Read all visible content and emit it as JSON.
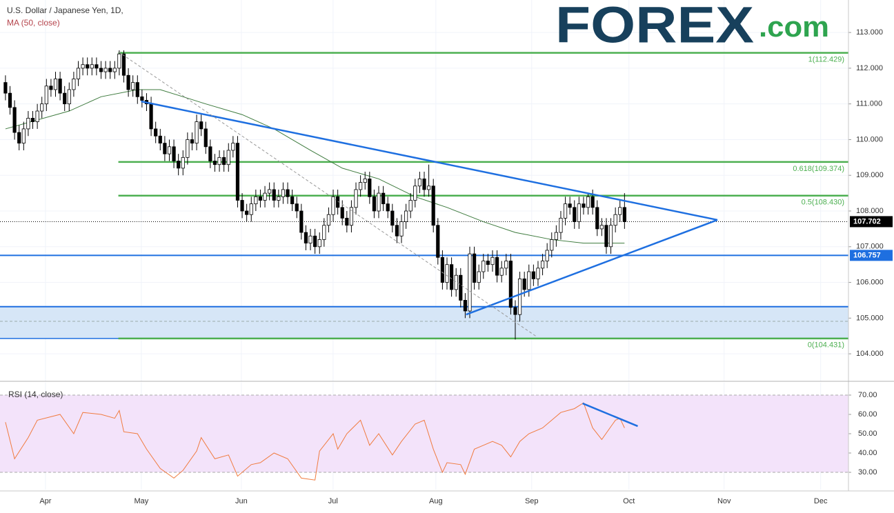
{
  "chart_data": {
    "type": "candlestick",
    "title": "U.S. Dollar / Japanese Yen, 1D,",
    "subtitle": "MA (50, close)",
    "logo": {
      "main": "FOREX",
      "suffix": ".com",
      "color": "#17405c",
      "suffix_color": "#2ea44f"
    },
    "xlim": [
      -1.2,
      185.2
    ],
    "xticks": [
      {
        "value": 8.79,
        "label": "Apr"
      },
      {
        "value": 29.85,
        "label": "May"
      },
      {
        "value": 51.82,
        "label": "Jun"
      },
      {
        "value": 71.97,
        "label": "Jul"
      },
      {
        "value": 94.55,
        "label": "Aug"
      },
      {
        "value": 115.6,
        "label": "Sep"
      },
      {
        "value": 136.97,
        "label": "Oct"
      },
      {
        "value": 157.88,
        "label": "Nov"
      },
      {
        "value": 179.09,
        "label": "Dec"
      }
    ],
    "ylim": [
      103.23,
      113.91
    ],
    "yticks": [
      {
        "value": 104,
        "label": "104.000"
      },
      {
        "value": 105,
        "label": "105.000"
      },
      {
        "value": 106,
        "label": "106.000"
      },
      {
        "value": 107,
        "label": "107.000"
      },
      {
        "value": 108,
        "label": "108.000"
      },
      {
        "value": 109,
        "label": "109.000"
      },
      {
        "value": 110,
        "label": "110.000"
      },
      {
        "value": 111,
        "label": "111.000"
      },
      {
        "value": 112,
        "label": "112.000"
      },
      {
        "value": 113,
        "label": "113.000"
      }
    ],
    "grid": true,
    "up_color": "#ffffff",
    "down_color": "#000000",
    "open": [
      111.6,
      111.3,
      110.9,
      110.2,
      109.9,
      110.3,
      110.6,
      110.5,
      110.8,
      111.0,
      111.5,
      111.4,
      111.7,
      111.3,
      111.0,
      111.4,
      111.7,
      112.0,
      112.1,
      112.0,
      112.1,
      112.0,
      111.9,
      112.0,
      111.9,
      112.0,
      112.4,
      111.8,
      111.4,
      111.6,
      111.2,
      111.1,
      111.0,
      110.3,
      110.1,
      109.9,
      109.6,
      109.8,
      109.4,
      109.2,
      109.5,
      110.0,
      109.9,
      110.5,
      110.3,
      109.8,
      109.4,
      109.3,
      109.5,
      109.3,
      109.7,
      109.9,
      108.3,
      108.0,
      107.9,
      108.2,
      108.4,
      108.3,
      108.5,
      108.6,
      108.3,
      108.4,
      108.6,
      108.4,
      108.2,
      108.0,
      107.4,
      107.1,
      107.3,
      107.0,
      107.2,
      107.6,
      107.9,
      108.4,
      108.1,
      107.8,
      107.6,
      108.1,
      108.6,
      108.8,
      108.9,
      108.4,
      108.0,
      108.5,
      108.2,
      108.0,
      107.6,
      107.3,
      107.7,
      108.0,
      108.3,
      108.7,
      108.9,
      108.6,
      108.7,
      107.6,
      106.7,
      106.0,
      106.5,
      105.8,
      106.2,
      105.5,
      105.2,
      106.8,
      106.0,
      106.3,
      106.6,
      106.5,
      106.7,
      106.2,
      106.4,
      106.6,
      105.3,
      105.1,
      106.1,
      105.8,
      106.3,
      106.1,
      106.4,
      106.6,
      106.9,
      107.2,
      107.4,
      107.8,
      108.2,
      108.1,
      107.7,
      108.2,
      108.1,
      108.4,
      108.1,
      107.5,
      107.6,
      107.0,
      107.6,
      107.9,
      108.1
    ],
    "high": [
      111.8,
      111.5,
      111.1,
      110.4,
      110.5,
      110.8,
      110.8,
      111.0,
      111.2,
      111.7,
      111.7,
      111.9,
      111.9,
      111.5,
      111.6,
      111.9,
      112.2,
      112.3,
      112.3,
      112.3,
      112.3,
      112.2,
      112.2,
      112.2,
      112.2,
      112.5,
      112.5,
      112.0,
      111.8,
      111.8,
      111.4,
      111.3,
      111.2,
      110.5,
      110.3,
      110.1,
      110.0,
      110.0,
      109.6,
      109.7,
      110.2,
      110.2,
      110.7,
      110.7,
      110.5,
      110.0,
      109.6,
      109.7,
      109.7,
      109.9,
      110.1,
      110.1,
      108.5,
      108.2,
      108.4,
      108.6,
      108.6,
      108.7,
      108.8,
      108.8,
      108.6,
      108.8,
      108.8,
      108.6,
      108.4,
      108.2,
      107.6,
      107.5,
      107.5,
      107.4,
      107.8,
      108.1,
      108.6,
      108.6,
      108.3,
      108.0,
      108.3,
      108.8,
      109.0,
      109.1,
      109.1,
      108.6,
      108.7,
      108.7,
      108.4,
      108.2,
      107.8,
      107.9,
      108.2,
      108.5,
      108.9,
      109.1,
      109.1,
      109.3,
      108.9,
      107.8,
      106.9,
      106.7,
      106.7,
      106.4,
      106.4,
      105.7,
      107.0,
      107.0,
      106.5,
      106.8,
      106.8,
      106.9,
      106.9,
      106.6,
      106.8,
      106.8,
      105.5,
      106.3,
      106.3,
      106.5,
      106.5,
      106.6,
      106.8,
      107.1,
      107.4,
      107.6,
      108.0,
      108.4,
      108.4,
      108.3,
      108.4,
      108.4,
      108.5,
      108.6,
      108.3,
      107.8,
      107.8,
      107.8,
      108.1,
      108.3,
      108.5
    ],
    "low": [
      111.1,
      110.7,
      110.0,
      109.7,
      109.7,
      110.1,
      110.3,
      110.3,
      110.6,
      110.8,
      111.2,
      111.2,
      111.1,
      110.8,
      110.8,
      111.2,
      111.5,
      111.8,
      111.8,
      111.8,
      111.8,
      111.7,
      111.7,
      111.7,
      111.7,
      111.8,
      111.6,
      111.2,
      111.2,
      111.0,
      110.9,
      110.8,
      110.1,
      109.9,
      109.7,
      109.4,
      109.4,
      109.2,
      109.0,
      109.0,
      109.3,
      109.7,
      109.7,
      110.1,
      109.6,
      109.2,
      109.1,
      109.1,
      109.1,
      109.1,
      109.5,
      108.1,
      107.8,
      107.7,
      107.7,
      108.0,
      108.1,
      108.1,
      108.3,
      108.1,
      108.1,
      108.2,
      108.2,
      108.0,
      107.8,
      107.2,
      106.9,
      106.9,
      106.8,
      106.8,
      107.0,
      107.4,
      107.7,
      107.9,
      107.6,
      107.4,
      107.4,
      107.9,
      108.4,
      108.6,
      108.2,
      107.8,
      107.8,
      108.0,
      107.8,
      107.4,
      107.1,
      107.1,
      107.5,
      107.8,
      108.1,
      108.5,
      108.4,
      108.4,
      107.4,
      106.5,
      105.8,
      105.8,
      105.6,
      105.6,
      105.3,
      105.0,
      105.0,
      105.8,
      105.8,
      106.1,
      106.3,
      106.3,
      106.0,
      106.0,
      106.2,
      105.1,
      104.4,
      104.9,
      105.6,
      105.6,
      105.9,
      105.9,
      106.2,
      106.4,
      106.7,
      107.0,
      107.2,
      107.6,
      107.9,
      107.5,
      107.5,
      107.9,
      107.9,
      107.9,
      107.3,
      107.3,
      106.8,
      106.8,
      107.4,
      107.7,
      107.5
    ],
    "close": [
      111.3,
      110.9,
      110.2,
      109.9,
      110.3,
      110.6,
      110.5,
      110.8,
      111.0,
      111.5,
      111.4,
      111.7,
      111.3,
      111.0,
      111.4,
      111.7,
      112.0,
      112.1,
      112.0,
      112.1,
      112.0,
      111.9,
      112.0,
      111.9,
      112.0,
      112.4,
      111.8,
      111.4,
      111.6,
      111.2,
      111.1,
      111.0,
      110.3,
      110.1,
      109.9,
      109.6,
      109.8,
      109.4,
      109.2,
      109.5,
      110.0,
      109.9,
      110.5,
      110.3,
      109.8,
      109.4,
      109.3,
      109.5,
      109.3,
      109.7,
      109.9,
      108.3,
      108.0,
      107.9,
      108.2,
      108.4,
      108.3,
      108.5,
      108.6,
      108.3,
      108.4,
      108.6,
      108.4,
      108.2,
      108.0,
      107.4,
      107.1,
      107.3,
      107.0,
      107.2,
      107.6,
      107.9,
      108.4,
      108.1,
      107.8,
      107.6,
      108.1,
      108.6,
      108.8,
      108.9,
      108.4,
      108.0,
      108.5,
      108.2,
      108.0,
      107.6,
      107.3,
      107.7,
      108.0,
      108.3,
      108.7,
      108.9,
      108.6,
      108.7,
      107.6,
      106.7,
      106.0,
      106.5,
      105.8,
      106.2,
      105.5,
      105.2,
      106.8,
      106.0,
      106.3,
      106.6,
      106.5,
      106.7,
      106.2,
      106.4,
      106.6,
      105.3,
      105.1,
      106.1,
      105.8,
      106.3,
      106.1,
      106.4,
      106.6,
      106.9,
      107.2,
      107.4,
      107.8,
      108.2,
      108.1,
      107.7,
      108.2,
      108.1,
      108.4,
      108.1,
      107.5,
      107.6,
      107.0,
      107.6,
      107.9,
      108.1,
      107.7
    ],
    "ma": {
      "color": "#3d7a3d",
      "x": [
        0,
        14,
        21,
        29,
        34,
        44,
        52,
        59,
        67,
        74,
        82,
        90,
        97,
        105,
        112,
        120,
        127,
        136
      ],
      "values": [
        110.3,
        110.8,
        111.2,
        111.4,
        111.4,
        111.0,
        110.7,
        110.3,
        109.7,
        109.2,
        108.9,
        108.4,
        108.1,
        107.7,
        107.4,
        107.2,
        107.1,
        107.1
      ]
    },
    "last_price": {
      "value": 107.702,
      "label": "107.702",
      "color": "#000000"
    },
    "levels": [
      {
        "value": 106.757,
        "label": "106.757",
        "color": "#1e6fe0"
      },
      {
        "value": 105.32,
        "color": "#1e6fe0"
      }
    ],
    "zone": {
      "from": 104.431,
      "to": 105.32,
      "mid": 104.91,
      "color": "#d6e6f7",
      "edge_color": "#1e6fe0"
    },
    "fib_color": "#4caf50",
    "fib": [
      {
        "value": 112.429,
        "label": "1(112.429)",
        "from_x": 24.8
      },
      {
        "value": 109.374,
        "label": "0.618(109.374)",
        "from_x": 24.8
      },
      {
        "value": 108.43,
        "label": "0.5(108.430)",
        "from_x": 24.8
      },
      {
        "value": 104.431,
        "label": "0(104.431)",
        "from_x": 24.8
      }
    ],
    "trendlines": [
      {
        "x": [
          29.8,
          156.4
        ],
        "values": [
          111.07,
          107.75
        ],
        "color": "#1e6fe0",
        "dash": false
      },
      {
        "x": [
          101.2,
          156.4
        ],
        "values": [
          105.1,
          107.75
        ],
        "color": "#1e6fe0",
        "dash": false
      },
      {
        "x": [
          24.8,
          116.7
        ],
        "values": [
          112.46,
          104.48
        ],
        "color": "#999999",
        "dash": true
      }
    ],
    "rsi": {
      "title": "RSI (14, close)",
      "color": "#f07b3f",
      "band": [
        30,
        70
      ],
      "band_color": "#f3e3fa",
      "ylim": [
        21.07,
        76.43
      ],
      "yticks": [
        {
          "value": 30,
          "label": "30.00"
        },
        {
          "value": 40,
          "label": "40.00"
        },
        {
          "value": 50,
          "label": "50.00"
        },
        {
          "value": 60,
          "label": "60.00"
        },
        {
          "value": 70,
          "label": "70.00"
        }
      ],
      "x": [
        0,
        2,
        5,
        7,
        12,
        15,
        17,
        21,
        24,
        25,
        26,
        29,
        31,
        34,
        37,
        39,
        42,
        43,
        46,
        49,
        51,
        54,
        56,
        59,
        62,
        65,
        68,
        69,
        72,
        73,
        75,
        78,
        80,
        82,
        85,
        87,
        90,
        92,
        94,
        96,
        97,
        100,
        101,
        103,
        105,
        107,
        109,
        111,
        113,
        115,
        118,
        122,
        125,
        127,
        129,
        131,
        134,
        135,
        136
      ],
      "values": [
        56,
        37,
        48,
        57,
        60,
        50,
        61,
        60,
        58,
        62,
        51,
        50,
        42,
        32,
        27,
        31,
        41,
        48,
        37,
        39,
        28,
        34,
        35,
        40,
        37,
        27,
        26,
        41,
        50,
        42,
        50,
        57,
        44,
        50,
        39,
        46,
        55,
        57,
        42,
        30,
        35,
        34,
        29,
        42,
        44,
        46,
        44,
        38,
        46,
        50,
        53,
        61,
        63,
        66,
        53,
        47,
        57,
        58,
        53
      ],
      "trendline": {
        "x": [
          126.8,
          138.9
        ],
        "values": [
          65.7,
          53.9
        ],
        "color": "#1e6fe0"
      }
    }
  }
}
